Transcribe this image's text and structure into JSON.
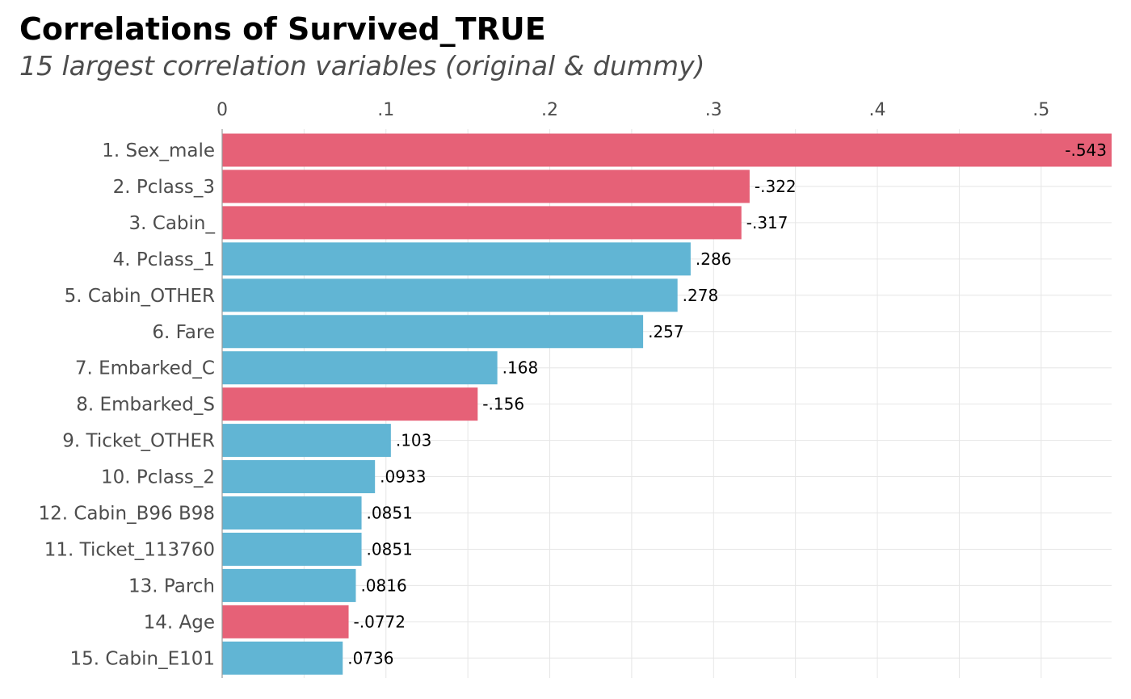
{
  "chart_data": {
    "type": "bar",
    "orientation": "horizontal",
    "title": "Correlations of Survived_TRUE",
    "subtitle": "15 largest correlation variables (original & dummy)",
    "xlim": [
      0,
      0.543
    ],
    "x_ticks": [
      {
        "value": 0,
        "label": "0"
      },
      {
        "value": 0.1,
        "label": ".1"
      },
      {
        "value": 0.2,
        "label": ".2"
      },
      {
        "value": 0.3,
        "label": ".3"
      },
      {
        "value": 0.4,
        "label": ".4"
      },
      {
        "value": 0.5,
        "label": ".5"
      }
    ],
    "x_axis_position": "top",
    "grid": true,
    "colors": {
      "positive": "#61b5d4",
      "negative": "#e66177"
    },
    "categories": [
      "1. Sex_male",
      "2. Pclass_3",
      "3. Cabin_",
      "4. Pclass_1",
      "5. Cabin_OTHER",
      "6. Fare",
      "7. Embarked_C",
      "8. Embarked_S",
      "9. Ticket_OTHER",
      "10. Pclass_2",
      "12. Cabin_B96 B98",
      "11. Ticket_113760",
      "13. Parch",
      "14. Age",
      "15. Cabin_E101"
    ],
    "values": [
      -0.543,
      -0.322,
      -0.317,
      0.286,
      0.278,
      0.257,
      0.168,
      -0.156,
      0.103,
      0.0933,
      0.0851,
      0.0851,
      0.0816,
      -0.0772,
      0.0736
    ],
    "value_labels": [
      "-.543",
      "-.322",
      "-.317",
      ".286",
      ".278",
      ".257",
      ".168",
      "-.156",
      ".103",
      ".0933",
      ".0851",
      ".0851",
      ".0816",
      "-.0772",
      ".0736"
    ]
  }
}
